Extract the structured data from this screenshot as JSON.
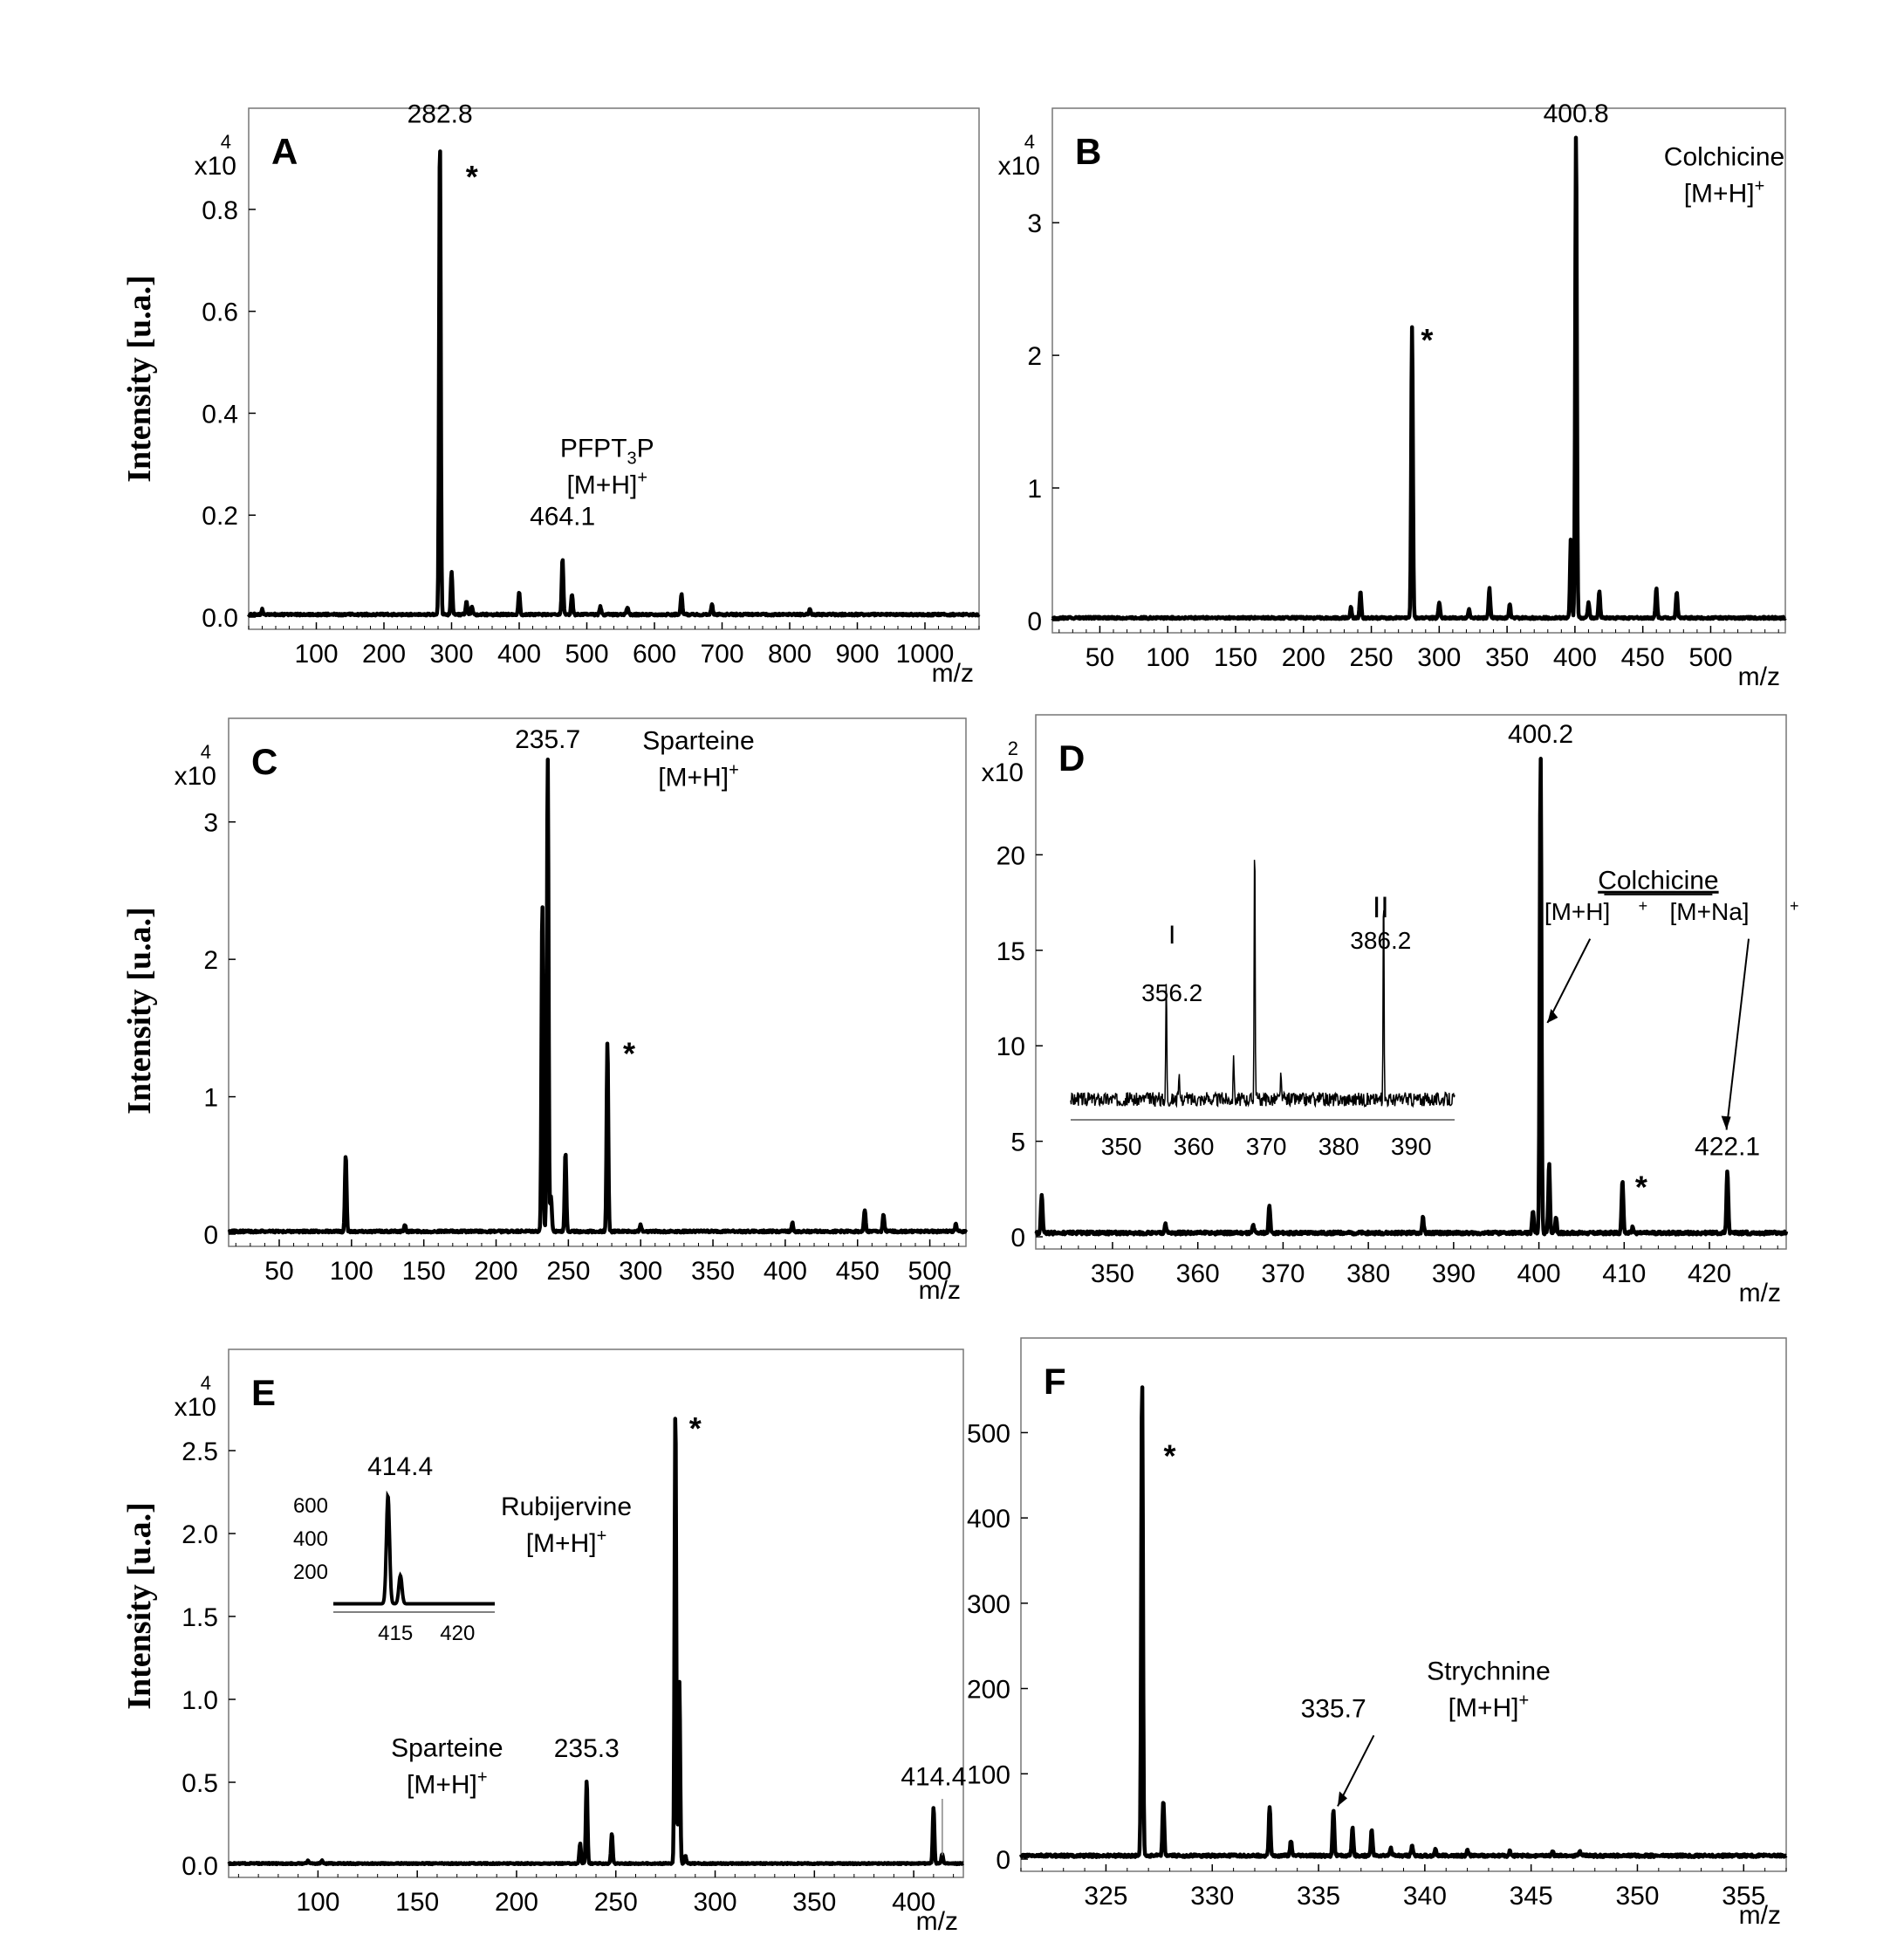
{
  "figure": {
    "y_axis_label": "Intensity  [u.a.]",
    "x_unit": "m/z"
  },
  "chart_data": [
    {
      "id": "A",
      "type": "line",
      "letter": "A",
      "multiplier": "x10",
      "exponent": "4",
      "xlabel": "m/z",
      "ylabel": "Intensity  [u.a.]",
      "xlim": [
        0,
        1080
      ],
      "ylim": [
        0,
        0.93
      ],
      "xticks": [
        100,
        200,
        300,
        400,
        500,
        600,
        700,
        800,
        900,
        1000
      ],
      "yticks": [
        0.0,
        0.2,
        0.4,
        0.6,
        0.8
      ],
      "yticklabels": [
        "0.0",
        "0.2",
        "0.4",
        "0.6",
        "0.8"
      ],
      "baseline": 0.005,
      "peaks": [
        [
          282.8,
          0.94
        ],
        [
          300,
          0.085
        ],
        [
          322,
          0.025
        ],
        [
          330,
          0.015
        ],
        [
          400,
          0.045
        ],
        [
          464.1,
          0.11
        ],
        [
          478,
          0.04
        ],
        [
          640,
          0.04
        ],
        [
          685,
          0.02
        ],
        [
          520,
          0.015
        ],
        [
          560,
          0.015
        ],
        [
          20,
          0.01
        ],
        [
          830,
          0.01
        ]
      ],
      "labels": [
        {
          "text": "282.8",
          "x": 282.8,
          "y": 0.96
        },
        {
          "text": "464.1",
          "x": 464.1,
          "y": 0.17
        },
        {
          "text": "*",
          "x": 330,
          "y": 0.86,
          "kind": "star"
        }
      ],
      "compound": {
        "name": "PFPT",
        "sub": "3",
        "tail": "P",
        "ion": "[M+H]",
        "x": 530,
        "y": 0.28
      }
    },
    {
      "id": "B",
      "type": "line",
      "letter": "B",
      "multiplier": "x10",
      "exponent": "4",
      "xlabel": "m/z",
      "ylabel": "",
      "xlim": [
        15,
        555
      ],
      "ylim": [
        0,
        3.6
      ],
      "xticks": [
        50,
        100,
        150,
        200,
        250,
        300,
        350,
        400,
        450,
        500
      ],
      "yticks": [
        0,
        1,
        2,
        3
      ],
      "yticklabels": [
        "0",
        "1",
        "2",
        "3"
      ],
      "baseline": 0.02,
      "peaks": [
        [
          235,
          0.08
        ],
        [
          242,
          0.2
        ],
        [
          280,
          2.2
        ],
        [
          300,
          0.12
        ],
        [
          322,
          0.07
        ],
        [
          337,
          0.22
        ],
        [
          352,
          0.1
        ],
        [
          400.8,
          3.65
        ],
        [
          397,
          0.6
        ],
        [
          410,
          0.12
        ],
        [
          418,
          0.2
        ],
        [
          460,
          0.22
        ],
        [
          475,
          0.2
        ]
      ],
      "labels": [
        {
          "text": "400.8",
          "x": 400.8,
          "y": 3.72
        },
        {
          "text": "*",
          "x": 291,
          "y": 2.1,
          "kind": "star"
        }
      ],
      "compound": {
        "name": "Colchicine",
        "ion": "[M+H]",
        "x": 510,
        "y": 3.3
      }
    },
    {
      "id": "C",
      "type": "line",
      "letter": "C",
      "multiplier": "x10",
      "exponent": "4",
      "xlabel": "m/z",
      "ylabel": "Intensity  [u.a.]",
      "xlim": [
        15,
        525
      ],
      "ylim": [
        0,
        3.5
      ],
      "xticks": [
        50,
        100,
        150,
        200,
        250,
        300,
        350,
        400,
        450,
        500
      ],
      "yticks": [
        0,
        1,
        2,
        3
      ],
      "yticklabels": [
        "0",
        "1",
        "2",
        "3"
      ],
      "baseline": 0.02,
      "peaks": [
        [
          96,
          0.56
        ],
        [
          137,
          0.05
        ],
        [
          232,
          2.4
        ],
        [
          235.7,
          3.45
        ],
        [
          238,
          0.25
        ],
        [
          248,
          0.58
        ],
        [
          277,
          1.38
        ],
        [
          300,
          0.05
        ],
        [
          405,
          0.06
        ],
        [
          455,
          0.16
        ],
        [
          468,
          0.12
        ],
        [
          518,
          0.05
        ]
      ],
      "labels": [
        {
          "text": "235.7",
          "x": 235.7,
          "y": 3.5
        },
        {
          "text": "*",
          "x": 292,
          "y": 1.3,
          "kind": "star"
        }
      ],
      "compound": {
        "name": "Sparteine",
        "ion": "[M+H]",
        "x": 340,
        "y": 3.4
      }
    },
    {
      "id": "D",
      "type": "line",
      "letter": "D",
      "multiplier": "x10",
      "exponent": "2",
      "xlabel": "m/z",
      "ylabel": "",
      "xlim": [
        341,
        429
      ],
      "ylim": [
        0,
        25.5
      ],
      "xticks": [
        350,
        360,
        370,
        380,
        390,
        400,
        410,
        420
      ],
      "yticks": [
        0,
        5,
        10,
        15,
        20
      ],
      "yticklabels": [
        "0",
        "5",
        "10",
        "15",
        "20"
      ],
      "baseline": 0.2,
      "peaks": [
        [
          341.7,
          2.0
        ],
        [
          356.2,
          0.5
        ],
        [
          366.5,
          0.4
        ],
        [
          368.4,
          1.5
        ],
        [
          386.4,
          0.8
        ],
        [
          399.3,
          1.2
        ],
        [
          400.2,
          25.0
        ],
        [
          401.2,
          3.6
        ],
        [
          402,
          0.8
        ],
        [
          409.8,
          2.8
        ],
        [
          411,
          0.3
        ],
        [
          422.1,
          3.3
        ]
      ],
      "labels": [
        {
          "text": "400.2",
          "x": 400.2,
          "y": 25.6
        },
        {
          "text": "422.1",
          "x": 422.1,
          "y": 4.0
        },
        {
          "text": "*",
          "x": 412,
          "y": 2.5,
          "kind": "star"
        }
      ],
      "compound_underlined": "Colchicine",
      "ion_labels": [
        "[M+H]",
        "[M+Na]"
      ],
      "inset": {
        "xticks": [
          350,
          360,
          370,
          380,
          390
        ],
        "peaks": [
          [
            356.2,
            0.45
          ],
          [
            365.5,
            0.18
          ],
          [
            368.4,
            1.0
          ],
          [
            386.2,
            0.8
          ],
          [
            358,
            0.1
          ],
          [
            372,
            0.1
          ]
        ],
        "labels": [
          {
            "text": "I",
            "x": 357
          },
          {
            "text": "356.2",
            "x": 357
          },
          {
            "text": "II",
            "x": 385.8
          },
          {
            "text": "386.2",
            "x": 385.8
          }
        ]
      }
    },
    {
      "id": "E",
      "type": "line",
      "letter": "E",
      "multiplier": "x10",
      "exponent": "4",
      "xlabel": "m/z",
      "ylabel": "Intensity  [u.a.]",
      "xlim": [
        55,
        425
      ],
      "ylim": [
        0,
        2.9
      ],
      "xticks": [
        100,
        150,
        200,
        250,
        300,
        350,
        400
      ],
      "yticks": [
        0.0,
        0.5,
        1.0,
        1.5,
        2.0,
        2.5
      ],
      "yticklabels": [
        "0.0",
        "0.5",
        "1.0",
        "1.5",
        "2.0",
        "2.5"
      ],
      "baseline": 0.01,
      "peaks": [
        [
          95,
          0.02
        ],
        [
          102,
          0.02
        ],
        [
          232,
          0.12
        ],
        [
          235.3,
          0.5
        ],
        [
          248,
          0.18
        ],
        [
          280,
          2.75
        ],
        [
          282,
          1.1
        ],
        [
          285,
          0.05
        ],
        [
          410,
          0.34
        ],
        [
          414.4,
          0.06
        ]
      ],
      "labels": [
        {
          "text": "235.3",
          "x": 235.3,
          "y": 0.62
        },
        {
          "text": "414.4",
          "x": 410,
          "y": 0.45
        },
        {
          "text": "*",
          "x": 290,
          "y": 2.62,
          "kind": "star"
        }
      ],
      "compound": {
        "name": "Sparteine",
        "ion": "[M+H]",
        "x": 165,
        "y": 0.55
      },
      "inset": {
        "label": "414.4",
        "compound": {
          "name": "Rubijervine",
          "ion": "[M+H]"
        },
        "yticks": [
          200,
          400,
          600
        ],
        "xticks": [
          415,
          420
        ],
        "peaks": [
          [
            414.4,
            650
          ],
          [
            415.4,
            170
          ]
        ]
      }
    },
    {
      "id": "F",
      "type": "line",
      "letter": "F",
      "multiplier": "",
      "exponent": "",
      "xlabel": "m/z",
      "ylabel": "",
      "xlim": [
        321,
        357
      ],
      "ylim": [
        0,
        570
      ],
      "xticks": [
        325,
        330,
        335,
        340,
        345,
        350,
        355
      ],
      "yticks": [
        0,
        100,
        200,
        300,
        400,
        500
      ],
      "yticklabels": [
        "0",
        "100",
        "200",
        "300",
        "400",
        "500"
      ],
      "baseline": 4,
      "peaks": [
        [
          326.7,
          560
        ],
        [
          327.7,
          65
        ],
        [
          332.7,
          58
        ],
        [
          333.7,
          18
        ],
        [
          335.7,
          55
        ],
        [
          336.6,
          32
        ],
        [
          337.5,
          30
        ],
        [
          338.4,
          10
        ],
        [
          339.4,
          12
        ],
        [
          340.5,
          8
        ],
        [
          342,
          6
        ],
        [
          344,
          5
        ],
        [
          346,
          6
        ],
        [
          347.3,
          5
        ]
      ],
      "labels": [
        {
          "text": "335.7",
          "x": 335.7,
          "y": 160
        },
        {
          "text": "*",
          "x": 328,
          "y": 470,
          "kind": "star"
        }
      ],
      "compound": {
        "name": "Strychnine",
        "ion": "[M+H]",
        "x": 343,
        "y": 190
      }
    }
  ]
}
